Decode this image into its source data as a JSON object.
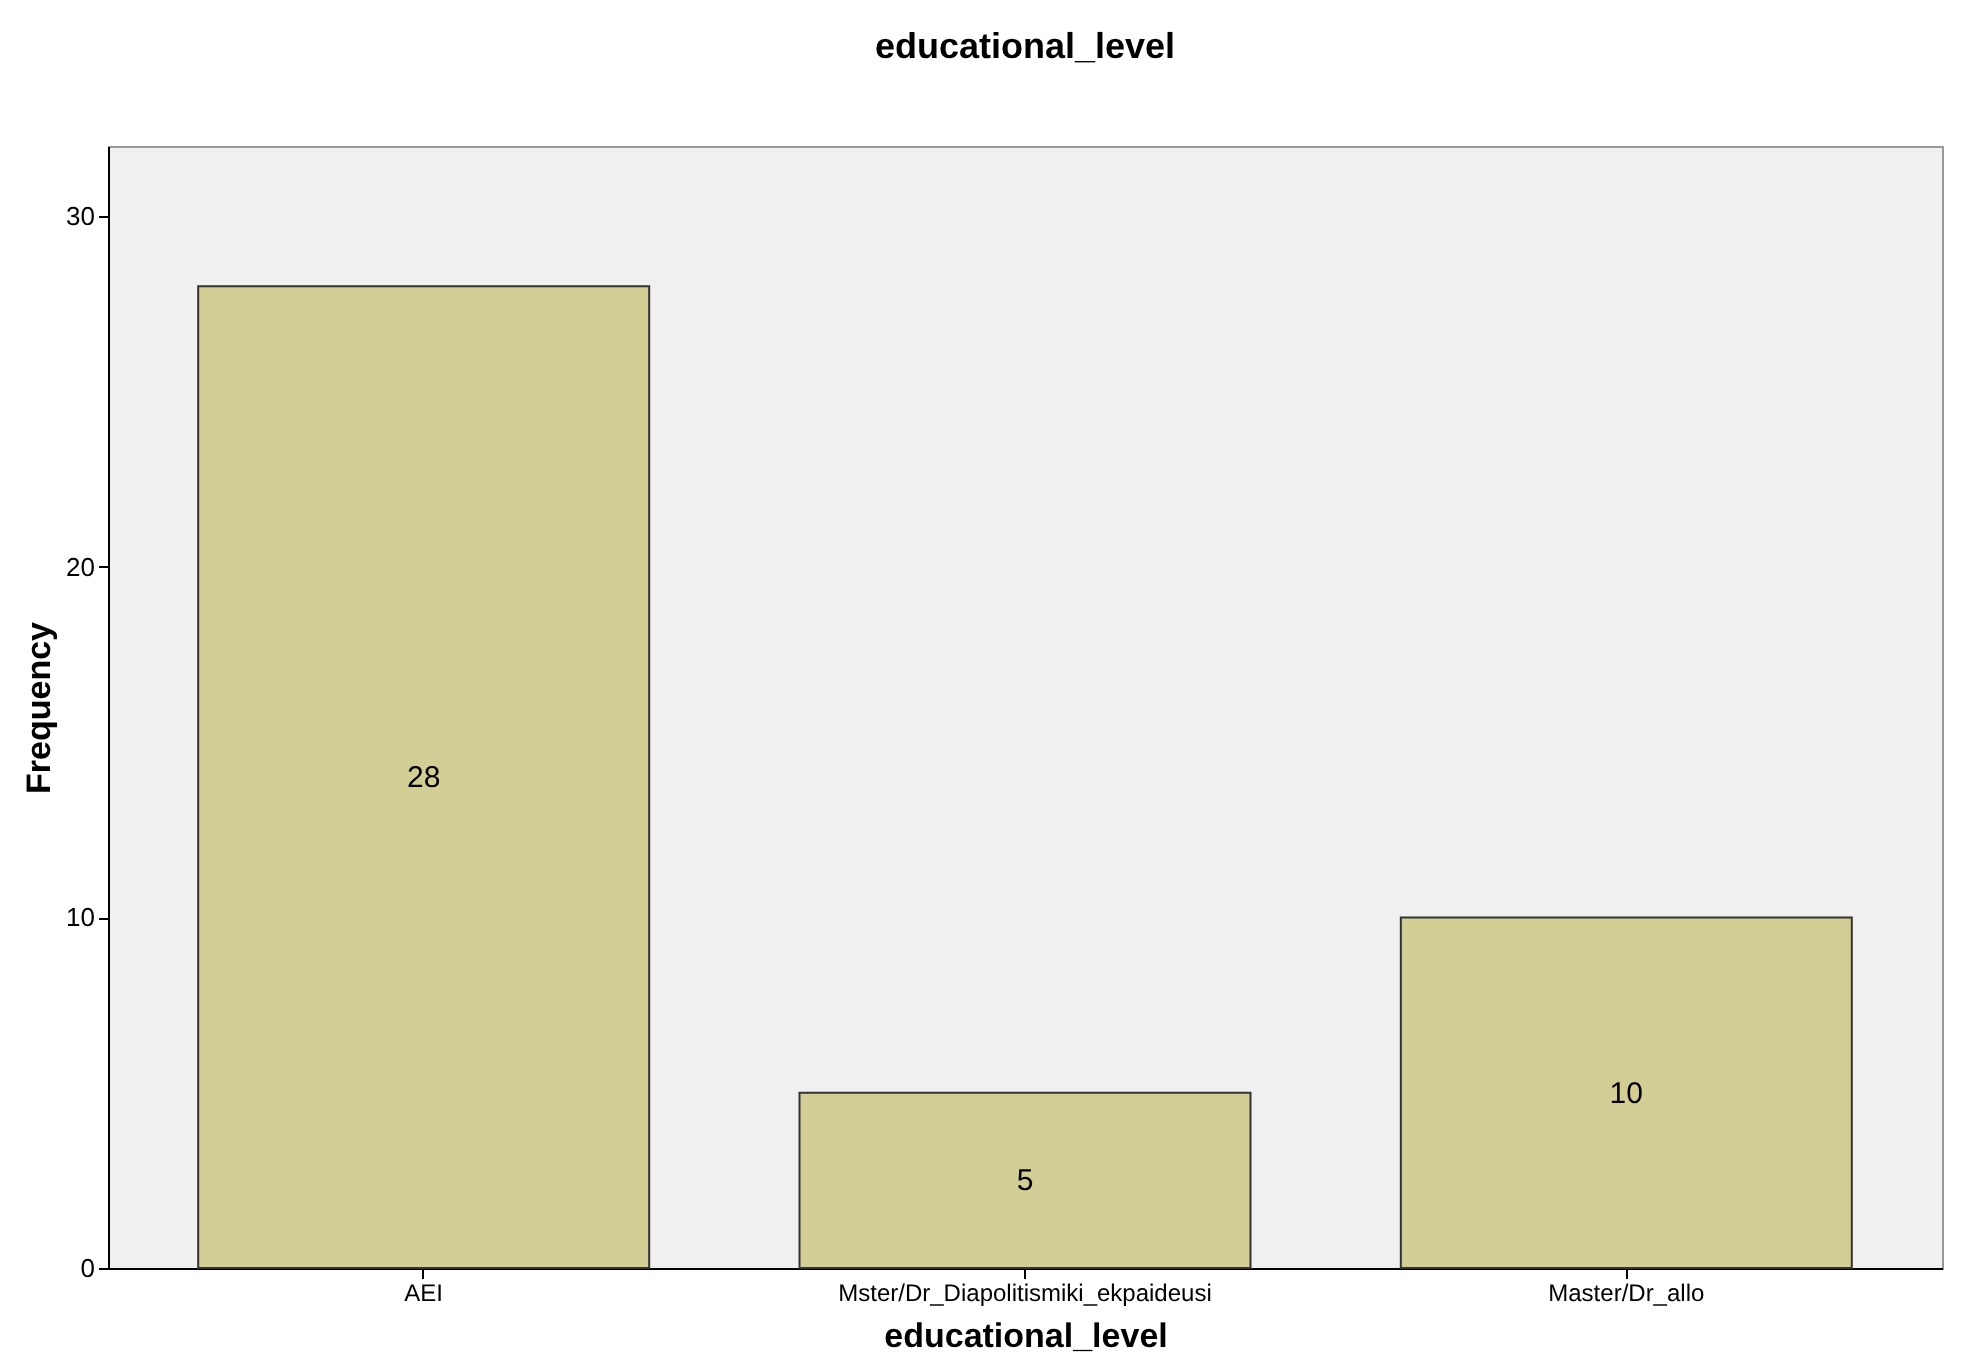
{
  "chart_data": {
    "type": "bar",
    "title": "educational_level",
    "xlabel": "educational_level",
    "ylabel": "Frequency",
    "categories": [
      "AEI",
      "Mster/Dr_Diapolitismiki_ekpaideusi",
      "Master/Dr_allo"
    ],
    "values": [
      28,
      5,
      10
    ],
    "color": "#d3ce95",
    "ylim": [
      0,
      32
    ],
    "yticks": [
      0,
      10,
      20,
      30
    ],
    "grid": false,
    "data_labels": true
  }
}
